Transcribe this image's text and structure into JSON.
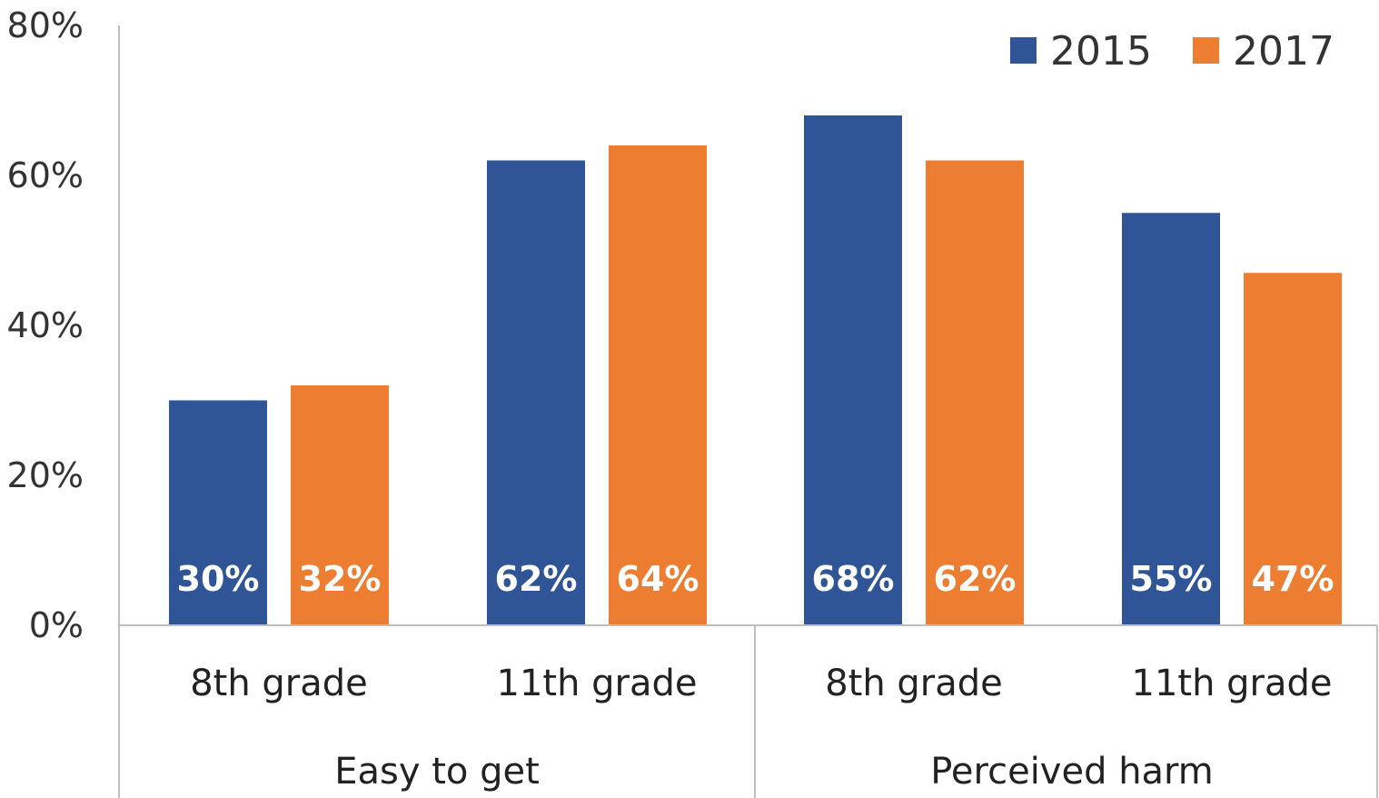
{
  "colors": {
    "series_2015": "#2f5597",
    "series_2017": "#ed7d31",
    "axis": "#bfbfbf"
  },
  "chart_data": {
    "type": "bar",
    "title": "",
    "xlabel": "",
    "ylabel": "",
    "ylim": [
      0,
      80
    ],
    "y_unit": "%",
    "y_ticks": [
      "0%",
      "20%",
      "40%",
      "60%",
      "80%"
    ],
    "y_tick_values": [
      0,
      20,
      40,
      60,
      80
    ],
    "categories": [
      "8th grade",
      "11th grade",
      "8th grade",
      "11th grade"
    ],
    "groups": [
      {
        "label": "Easy to get",
        "categories": [
          "8th grade",
          "11th grade"
        ]
      },
      {
        "label": "Perceived harm",
        "categories": [
          "8th grade",
          "11th grade"
        ]
      }
    ],
    "series": [
      {
        "name": "2015",
        "values": [
          30,
          62,
          68,
          55
        ],
        "labels": [
          "30%",
          "62%",
          "68%",
          "55%"
        ]
      },
      {
        "name": "2017",
        "values": [
          32,
          64,
          62,
          47
        ],
        "labels": [
          "32%",
          "64%",
          "62%",
          "47%"
        ]
      }
    ],
    "legend_position": "top-right",
    "grid": false
  }
}
